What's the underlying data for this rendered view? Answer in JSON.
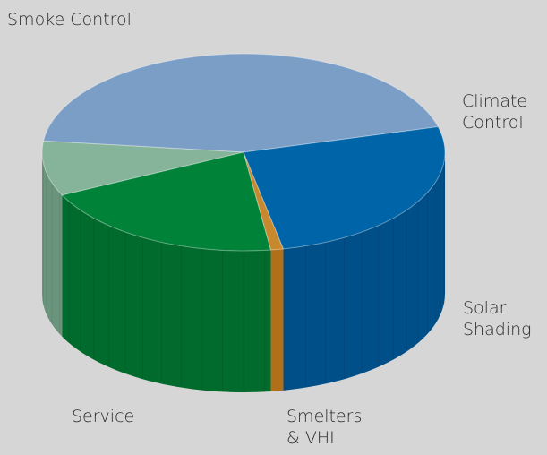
{
  "chart_data": {
    "type": "pie",
    "style": "3d-cylinder",
    "unit": "percent",
    "slices": [
      {
        "label": [
          "Smoke Control"
        ],
        "value": 44.0,
        "top_color": "#7b9ec7",
        "side_color": "#5c7898"
      },
      {
        "label": [
          "Climate",
          "Control"
        ],
        "value": 9.0,
        "top_color": "#86b49a",
        "side_color": "#6a957c"
      },
      {
        "label": [
          "Solar",
          "Shading"
        ],
        "value": 20.0,
        "top_color": "#008238",
        "side_color": "#006b2c"
      },
      {
        "label": [
          "Smelters",
          "& VHI"
        ],
        "value": 1.0,
        "top_color": "#c8892e",
        "side_color": "#b07019"
      },
      {
        "label": [
          "Service"
        ],
        "value": 26.0,
        "top_color": "#0065a8",
        "side_color": "#004f89"
      }
    ]
  }
}
